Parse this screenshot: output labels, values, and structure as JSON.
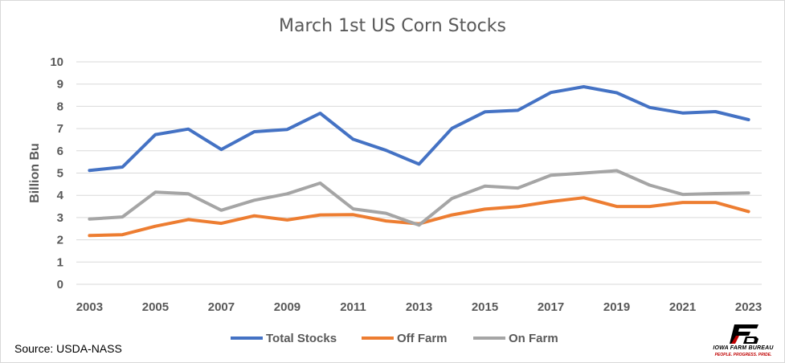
{
  "chart_data": {
    "type": "line",
    "title": "March 1st US Corn Stocks",
    "ylabel": "Billion Bu",
    "xlabel": "",
    "ylim": [
      0,
      10
    ],
    "yticks": [
      0,
      1,
      2,
      3,
      4,
      5,
      6,
      7,
      8,
      9,
      10
    ],
    "xticks": [
      2003,
      2005,
      2007,
      2009,
      2011,
      2013,
      2015,
      2017,
      2019,
      2021,
      2023
    ],
    "x": [
      2003,
      2004,
      2005,
      2006,
      2007,
      2008,
      2009,
      2010,
      2011,
      2012,
      2013,
      2014,
      2015,
      2016,
      2017,
      2018,
      2019,
      2020,
      2021,
      2022,
      2023
    ],
    "grid": true,
    "legend_position": "bottom",
    "series": [
      {
        "name": "Total Stocks",
        "color": "#4472c4",
        "values": [
          5.12,
          5.27,
          6.73,
          6.98,
          6.06,
          6.86,
          6.96,
          7.69,
          6.52,
          6.02,
          5.4,
          7.01,
          7.75,
          7.82,
          8.62,
          8.88,
          8.61,
          7.95,
          7.7,
          7.76,
          7.4
        ]
      },
      {
        "name": "Off Farm",
        "color": "#ed7d31",
        "values": [
          2.19,
          2.23,
          2.61,
          2.91,
          2.74,
          3.08,
          2.89,
          3.12,
          3.13,
          2.85,
          2.72,
          3.12,
          3.38,
          3.49,
          3.72,
          3.89,
          3.5,
          3.5,
          3.68,
          3.68,
          3.27
        ]
      },
      {
        "name": "On Farm",
        "color": "#a5a5a5",
        "values": [
          2.93,
          3.03,
          4.14,
          4.07,
          3.33,
          3.78,
          4.07,
          4.55,
          3.39,
          3.19,
          2.66,
          3.86,
          4.41,
          4.33,
          4.9,
          5.0,
          5.11,
          4.46,
          4.04,
          4.08,
          4.11
        ]
      }
    ]
  },
  "source": "Source: USDA-NASS",
  "logo": {
    "mark": "FB",
    "org": "IOWA FARM BUREAU",
    "tagline": "PEOPLE. PROGRESS. PRIDE."
  }
}
